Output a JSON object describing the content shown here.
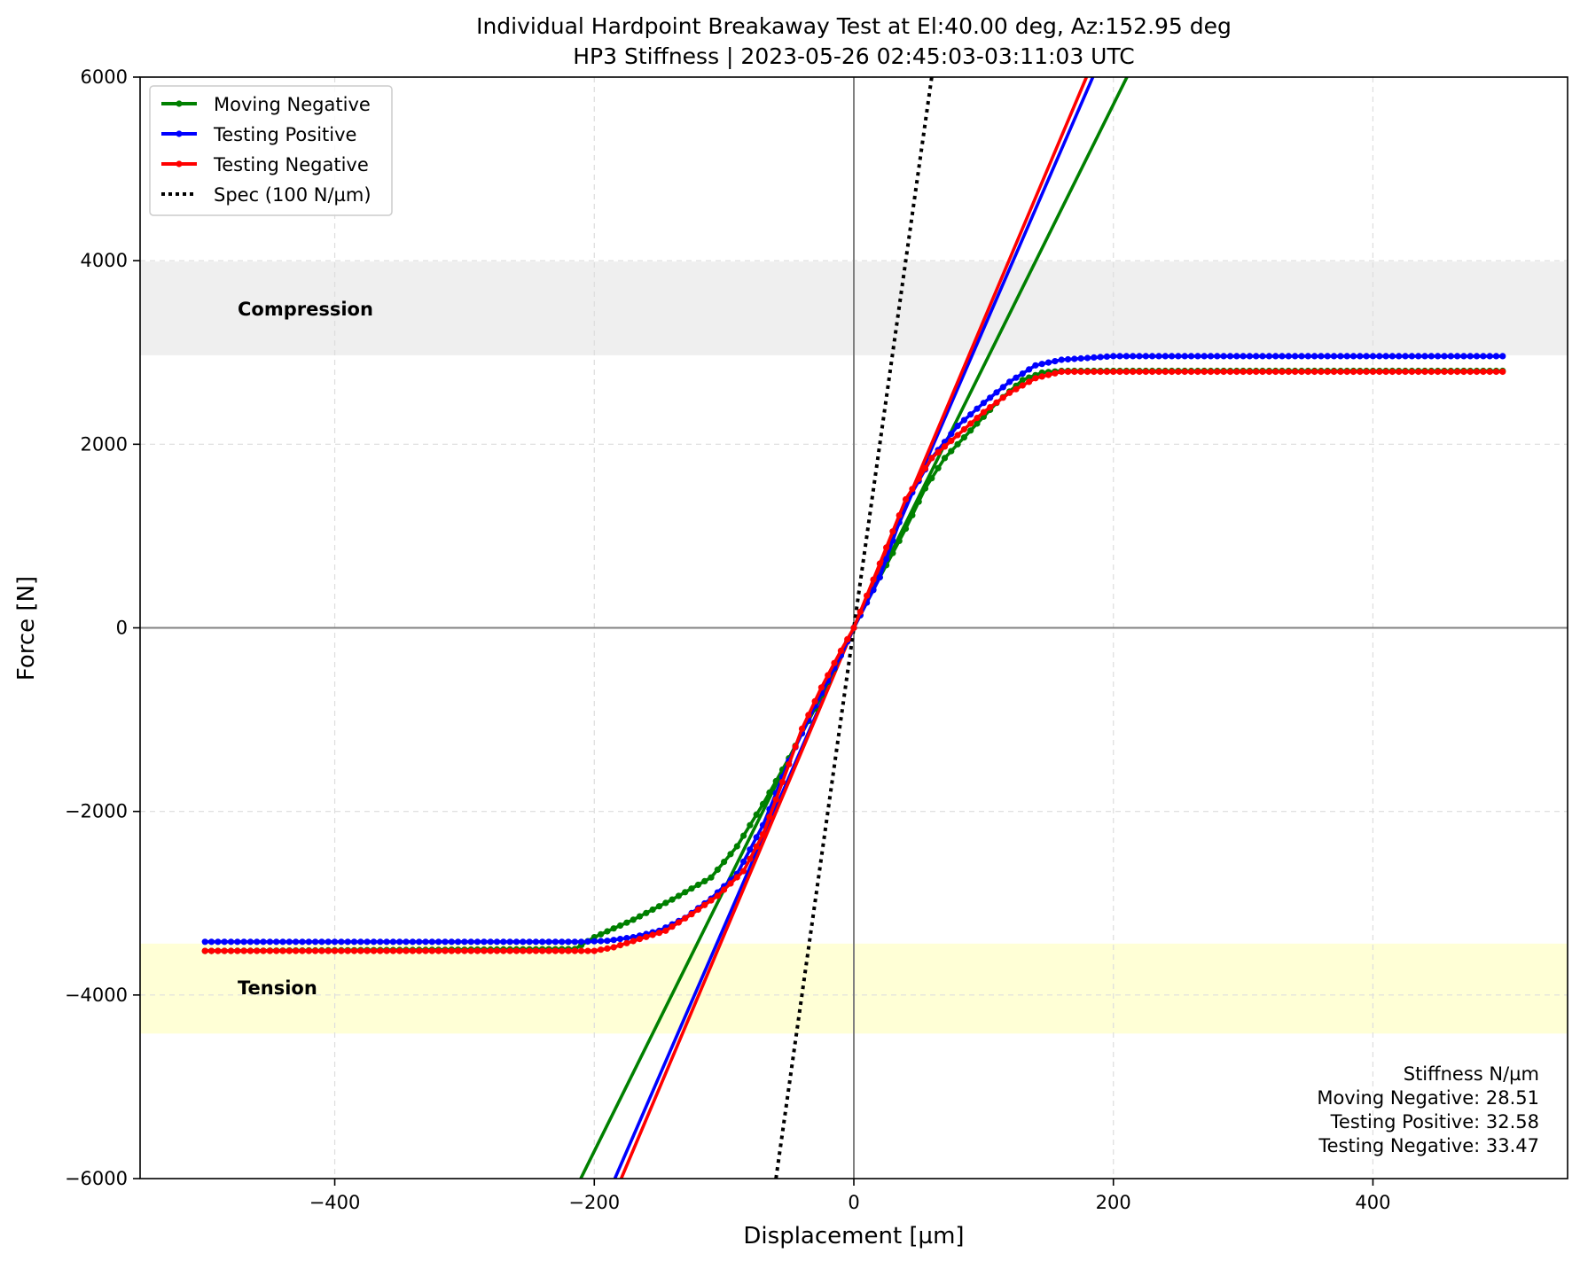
{
  "chart_data": {
    "type": "line",
    "title": "Individual Hardpoint Breakaway Test at El:40.00 deg, Az:152.95 deg",
    "subtitle": "HP3 Stiffness | 2023-05-26 02:45:03-03:11:03 UTC",
    "xlabel": "Displacement [µm]",
    "ylabel": "Force [N]",
    "xlim": [
      -550,
      550
    ],
    "ylim": [
      -6000,
      6000
    ],
    "xticks": [
      -400,
      -200,
      0,
      200,
      400
    ],
    "yticks": [
      -6000,
      -4000,
      -2000,
      0,
      2000,
      4000,
      6000
    ],
    "grid": true,
    "legend_position": "top-left",
    "bands": [
      {
        "label": "Compression",
        "y_range": [
          2970,
          3990
        ],
        "color": "#efefef"
      },
      {
        "label": "Tension",
        "y_range": [
          -4420,
          -3440
        ],
        "color": "#ffffd6"
      }
    ],
    "series": [
      {
        "name": "Moving Negative",
        "color": "#008000",
        "knots": [
          [
            -500,
            -3520
          ],
          [
            -215,
            -3500
          ],
          [
            -200,
            -3370
          ],
          [
            -170,
            -3180
          ],
          [
            -140,
            -2960
          ],
          [
            -110,
            -2720
          ],
          [
            -90,
            -2380
          ],
          [
            -70,
            -1920
          ],
          [
            -50,
            -1420
          ],
          [
            -30,
            -880
          ],
          [
            -10,
            -300
          ],
          [
            0,
            0
          ],
          [
            20,
            550
          ],
          [
            40,
            1080
          ],
          [
            55,
            1520
          ],
          [
            70,
            1850
          ],
          [
            90,
            2150
          ],
          [
            110,
            2450
          ],
          [
            130,
            2700
          ],
          [
            145,
            2780
          ],
          [
            160,
            2800
          ],
          [
            500,
            2800
          ]
        ],
        "fit": {
          "slope": 28.51,
          "intercept": 0
        }
      },
      {
        "name": "Testing Positive",
        "color": "#0000ff",
        "knots": [
          [
            -500,
            -3420
          ],
          [
            -210,
            -3420
          ],
          [
            -190,
            -3410
          ],
          [
            -170,
            -3370
          ],
          [
            -150,
            -3300
          ],
          [
            -130,
            -3160
          ],
          [
            -110,
            -2950
          ],
          [
            -90,
            -2680
          ],
          [
            -70,
            -2150
          ],
          [
            -50,
            -1450
          ],
          [
            -30,
            -850
          ],
          [
            -10,
            -300
          ],
          [
            0,
            0
          ],
          [
            20,
            550
          ],
          [
            40,
            1350
          ],
          [
            60,
            1850
          ],
          [
            80,
            2200
          ],
          [
            100,
            2450
          ],
          [
            120,
            2680
          ],
          [
            140,
            2860
          ],
          [
            160,
            2920
          ],
          [
            200,
            2960
          ],
          [
            500,
            2960
          ]
        ],
        "fit": {
          "slope": 32.58,
          "intercept": 0
        }
      },
      {
        "name": "Testing Negative",
        "color": "#ff0000",
        "knots": [
          [
            -500,
            -3520
          ],
          [
            -200,
            -3520
          ],
          [
            -185,
            -3480
          ],
          [
            -165,
            -3390
          ],
          [
            -145,
            -3300
          ],
          [
            -125,
            -3120
          ],
          [
            -105,
            -2920
          ],
          [
            -85,
            -2650
          ],
          [
            -70,
            -2250
          ],
          [
            -55,
            -1680
          ],
          [
            -40,
            -1100
          ],
          [
            -25,
            -650
          ],
          [
            -10,
            -250
          ],
          [
            0,
            0
          ],
          [
            20,
            700
          ],
          [
            40,
            1400
          ],
          [
            60,
            1850
          ],
          [
            80,
            2100
          ],
          [
            100,
            2350
          ],
          [
            120,
            2560
          ],
          [
            140,
            2720
          ],
          [
            160,
            2790
          ],
          [
            500,
            2790
          ]
        ],
        "fit": {
          "slope": 33.47,
          "intercept": 0
        }
      }
    ],
    "spec_line": {
      "name": "Spec (100 N/µm)",
      "slope": 100,
      "color": "#000000"
    },
    "annotation": {
      "title": "Stiffness N/µm",
      "lines": [
        "Moving Negative: 28.51",
        "Testing Positive: 32.58",
        "Testing Negative: 33.47"
      ]
    }
  }
}
